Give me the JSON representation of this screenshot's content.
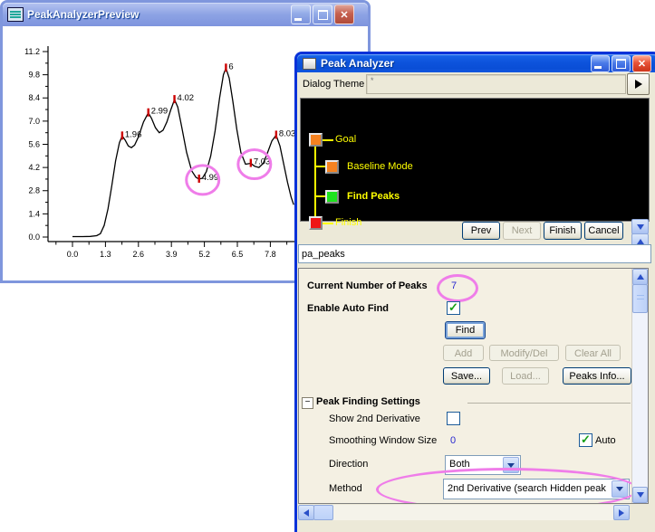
{
  "icons": {
    "close": "✕",
    "check": "✓",
    "collapse_minus": "−",
    "theme_asterisk": "*"
  },
  "preview_window": {
    "title": "PeakAnalyzerPreview"
  },
  "chart_data": {
    "type": "line",
    "title": "",
    "xlabel": "",
    "ylabel": "",
    "xlim": [
      -0.96,
      8.9
    ],
    "ylim": [
      -0.35,
      11.9
    ],
    "x_ticks": [
      0,
      1.3,
      2.6,
      3.9,
      5.2,
      6.5,
      7.8
    ],
    "x_tick_labels": [
      "0.0",
      "1.3",
      "2.6",
      "3.9",
      "5.2",
      "6.5",
      "7.8"
    ],
    "y_ticks": [
      0,
      1.4,
      2.8,
      4.2,
      5.6,
      7.0,
      8.4,
      9.8,
      11.2
    ],
    "y_tick_labels": [
      "0.0",
      "1.4",
      "2.8",
      "4.2",
      "5.6",
      "7.0",
      "8.4",
      "9.8",
      "11.2"
    ],
    "line_color": "#000000",
    "peak_marker_color": "#cc0000",
    "annotation_color": "#ef7de9",
    "grid": false,
    "curve": [
      [
        0,
        0.03
      ],
      [
        0.4,
        0.03
      ],
      [
        0.7,
        0.04
      ],
      [
        0.95,
        0.08
      ],
      [
        1.1,
        0.2
      ],
      [
        1.25,
        0.7
      ],
      [
        1.4,
        1.7
      ],
      [
        1.55,
        3.1
      ],
      [
        1.7,
        4.6
      ],
      [
        1.85,
        5.7
      ],
      [
        1.96,
        6.1
      ],
      [
        2.08,
        5.85
      ],
      [
        2.2,
        5.5
      ],
      [
        2.32,
        5.4
      ],
      [
        2.45,
        5.55
      ],
      [
        2.6,
        6.05
      ],
      [
        2.8,
        6.95
      ],
      [
        2.99,
        7.5
      ],
      [
        3.12,
        7.15
      ],
      [
        3.27,
        6.6
      ],
      [
        3.42,
        6.3
      ],
      [
        3.57,
        6.45
      ],
      [
        3.72,
        6.95
      ],
      [
        3.88,
        7.7
      ],
      [
        4.02,
        8.3
      ],
      [
        4.15,
        7.85
      ],
      [
        4.3,
        6.7
      ],
      [
        4.5,
        5.1
      ],
      [
        4.7,
        4.0
      ],
      [
        4.87,
        3.6
      ],
      [
        4.99,
        3.5
      ],
      [
        5.12,
        3.55
      ],
      [
        5.28,
        3.95
      ],
      [
        5.45,
        4.9
      ],
      [
        5.62,
        6.4
      ],
      [
        5.8,
        8.4
      ],
      [
        5.95,
        9.8
      ],
      [
        6.05,
        10.2
      ],
      [
        6.18,
        9.6
      ],
      [
        6.32,
        8.2
      ],
      [
        6.48,
        6.5
      ],
      [
        6.64,
        5.1
      ],
      [
        6.82,
        4.4
      ],
      [
        7.03,
        4.45
      ],
      [
        7.18,
        4.28
      ],
      [
        7.35,
        4.2
      ],
      [
        7.52,
        4.45
      ],
      [
        7.68,
        5.05
      ],
      [
        7.86,
        5.8
      ],
      [
        8.03,
        6.15
      ],
      [
        8.18,
        5.5
      ],
      [
        8.33,
        4.4
      ],
      [
        8.48,
        3.3
      ],
      [
        8.62,
        2.4
      ],
      [
        8.72,
        1.95
      ]
    ],
    "peaks": [
      {
        "x": 1.96,
        "y": 6.1,
        "label": "1.96",
        "circled": false
      },
      {
        "x": 2.99,
        "y": 7.5,
        "label": "2.99",
        "circled": false
      },
      {
        "x": 4.02,
        "y": 8.3,
        "label": "4.02",
        "circled": false
      },
      {
        "x": 4.99,
        "y": 3.5,
        "label": "4.99",
        "circled": true
      },
      {
        "x": 6.05,
        "y": 10.2,
        "label": "6",
        "circled": false
      },
      {
        "x": 7.03,
        "y": 4.45,
        "label": "7.03",
        "circled": true
      },
      {
        "x": 8.03,
        "y": 6.15,
        "label": "8.03",
        "circled": false
      }
    ]
  },
  "dialog": {
    "title": "Peak Analyzer",
    "theme_label": "Dialog Theme",
    "theme_value": "*",
    "wizard_steps": [
      {
        "label": "Goal",
        "color": "#f58220",
        "indent": 0,
        "active": false
      },
      {
        "label": "Baseline Mode",
        "color": "#f58220",
        "indent": 1,
        "active": false
      },
      {
        "label": "Find Peaks",
        "color": "#1ee41e",
        "indent": 1,
        "active": true
      },
      {
        "label": "Finish",
        "color": "#ee1616",
        "indent": 0,
        "active": false
      }
    ],
    "nav_buttons": [
      {
        "label": "Prev",
        "enabled": true
      },
      {
        "label": "Next",
        "enabled": false
      },
      {
        "label": "Finish",
        "enabled": true
      },
      {
        "label": "Cancel",
        "enabled": true
      }
    ],
    "template_name": "pa_peaks",
    "panel": {
      "current_peaks_label": "Current Number of Peaks",
      "current_peaks_value": "7",
      "auto_find_label": "Enable Auto Find",
      "auto_find_checked": true,
      "find_button": {
        "label": "Find",
        "enabled": true
      },
      "add_button": {
        "label": "Add",
        "enabled": false
      },
      "modify_button": {
        "label": "Modify/Del",
        "enabled": false
      },
      "clear_button": {
        "label": "Clear All",
        "enabled": false
      },
      "save_button": {
        "label": "Save...",
        "enabled": true
      },
      "load_button": {
        "label": "Load...",
        "enabled": false
      },
      "peaks_info_button": {
        "label": "Peaks Info...",
        "enabled": true
      },
      "section_title": "Peak Finding Settings",
      "show_2nd_label": "Show 2nd Derivative",
      "show_2nd_checked": false,
      "smoothing_label": "Smoothing Window Size",
      "smoothing_value": "0",
      "auto_label": "Auto",
      "auto_checked": true,
      "direction_label": "Direction",
      "direction_value": "Both",
      "method_label": "Method",
      "method_value": "2nd Derivative (search Hidden peak"
    }
  }
}
